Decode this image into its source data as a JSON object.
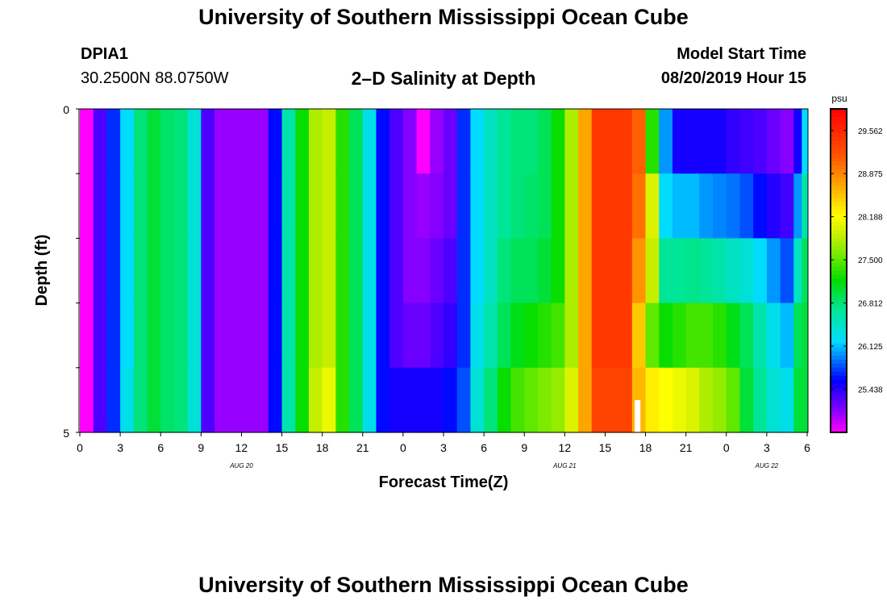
{
  "page": {
    "title": "University of Southern Mississippi Ocean Cube",
    "footer_title": "University of Southern Mississippi Ocean Cube",
    "station_id": "DPIA1",
    "station_coords": "30.2500N 88.0750W",
    "plot_title": "2–D Salinity at Depth",
    "model_start_label": "Model Start Time",
    "model_start_value": "08/20/2019 Hour 15"
  },
  "chart_data": {
    "type": "heatmap",
    "title": "2–D Salinity at Depth",
    "xlabel": "Forecast Time(Z)",
    "ylabel": "Depth (ft)",
    "x_tick_labels": [
      "0",
      "3",
      "6",
      "9",
      "12",
      "15",
      "18",
      "21",
      "0",
      "3",
      "6",
      "9",
      "12",
      "15",
      "18",
      "21",
      "0",
      "3",
      "6"
    ],
    "date_labels": [
      {
        "text": "AUG 20",
        "hour": 12
      },
      {
        "text": "AUG 21",
        "hour": 36
      },
      {
        "text": "AUG 22",
        "hour": 51
      }
    ],
    "y_tick_labels": [
      "0",
      "5"
    ],
    "x_hours": [
      0,
      54
    ],
    "depth_ft": [
      0,
      5
    ],
    "colorbar": {
      "unit": "psu",
      "min": 24.75,
      "max": 29.906,
      "tick_values": [
        "29.562",
        "28.875",
        "28.188",
        "27.500",
        "26.812",
        "26.125",
        "25.438"
      ]
    },
    "columns": [
      {
        "start": 0,
        "end": 1,
        "v": [
          24.75,
          24.75,
          24.75,
          24.75,
          24.75
        ]
      },
      {
        "start": 1,
        "end": 2,
        "v": [
          25.3,
          25.3,
          25.3,
          25.3,
          25.3
        ]
      },
      {
        "start": 2,
        "end": 3,
        "v": [
          25.7,
          25.7,
          25.7,
          25.7,
          25.7
        ]
      },
      {
        "start": 3,
        "end": 4,
        "v": [
          26.2,
          26.2,
          26.2,
          26.2,
          26.3
        ]
      },
      {
        "start": 4,
        "end": 5,
        "v": [
          26.8,
          26.8,
          26.8,
          26.8,
          26.8
        ]
      },
      {
        "start": 5,
        "end": 6,
        "v": [
          27.0,
          27.0,
          27.0,
          27.0,
          27.0
        ]
      },
      {
        "start": 6,
        "end": 7,
        "v": [
          26.85,
          26.85,
          26.85,
          26.85,
          26.85
        ]
      },
      {
        "start": 7,
        "end": 8,
        "v": [
          26.8,
          26.8,
          26.8,
          26.8,
          26.8
        ]
      },
      {
        "start": 8,
        "end": 9,
        "v": [
          26.4,
          26.4,
          26.4,
          26.4,
          26.4
        ]
      },
      {
        "start": 9,
        "end": 10,
        "v": [
          25.3,
          25.3,
          25.3,
          25.3,
          25.3
        ]
      },
      {
        "start": 10,
        "end": 14,
        "v": [
          25.05,
          25.05,
          25.05,
          25.05,
          25.05
        ]
      },
      {
        "start": 14,
        "end": 15,
        "v": [
          25.6,
          25.6,
          25.6,
          25.6,
          25.6
        ]
      },
      {
        "start": 15,
        "end": 16,
        "v": [
          26.6,
          26.6,
          26.6,
          26.6,
          26.6
        ]
      },
      {
        "start": 16,
        "end": 17,
        "v": [
          27.2,
          27.2,
          27.2,
          27.2,
          27.2
        ]
      },
      {
        "start": 17,
        "end": 18,
        "v": [
          27.8,
          27.8,
          27.8,
          27.8,
          27.9
        ]
      },
      {
        "start": 18,
        "end": 19,
        "v": [
          27.9,
          27.9,
          27.9,
          27.9,
          28.1
        ]
      },
      {
        "start": 19,
        "end": 20,
        "v": [
          27.3,
          27.3,
          27.3,
          27.3,
          27.3
        ]
      },
      {
        "start": 20,
        "end": 21,
        "v": [
          26.9,
          26.9,
          26.9,
          26.9,
          26.9
        ]
      },
      {
        "start": 21,
        "end": 22,
        "v": [
          26.3,
          26.3,
          26.3,
          26.3,
          26.3
        ]
      },
      {
        "start": 22,
        "end": 23,
        "v": [
          25.6,
          25.6,
          25.6,
          25.6,
          25.6
        ]
      },
      {
        "start": 23,
        "end": 24,
        "v": [
          25.3,
          25.3,
          25.3,
          25.3,
          25.5
        ]
      },
      {
        "start": 24,
        "end": 25,
        "v": [
          25.1,
          25.1,
          25.1,
          25.2,
          25.5
        ]
      },
      {
        "start": 25,
        "end": 26,
        "v": [
          24.75,
          25.05,
          25.1,
          25.2,
          25.5
        ]
      },
      {
        "start": 26,
        "end": 27,
        "v": [
          25.05,
          25.1,
          25.2,
          25.3,
          25.5
        ]
      },
      {
        "start": 27,
        "end": 28,
        "v": [
          25.2,
          25.2,
          25.3,
          25.4,
          25.6
        ]
      },
      {
        "start": 28,
        "end": 29,
        "v": [
          25.7,
          25.7,
          25.7,
          25.7,
          25.8
        ]
      },
      {
        "start": 29,
        "end": 30,
        "v": [
          26.2,
          26.2,
          26.2,
          26.3,
          26.4
        ]
      },
      {
        "start": 30,
        "end": 31,
        "v": [
          26.5,
          26.5,
          26.5,
          26.6,
          26.8
        ]
      },
      {
        "start": 31,
        "end": 32,
        "v": [
          26.7,
          26.7,
          26.8,
          26.9,
          27.2
        ]
      },
      {
        "start": 32,
        "end": 33,
        "v": [
          26.8,
          26.8,
          26.9,
          27.1,
          27.4
        ]
      },
      {
        "start": 33,
        "end": 34,
        "v": [
          26.8,
          26.85,
          26.9,
          27.2,
          27.5
        ]
      },
      {
        "start": 34,
        "end": 35,
        "v": [
          26.9,
          26.9,
          27.0,
          27.3,
          27.6
        ]
      },
      {
        "start": 35,
        "end": 36,
        "v": [
          27.2,
          27.2,
          27.2,
          27.4,
          27.7
        ]
      },
      {
        "start": 36,
        "end": 37,
        "v": [
          27.8,
          27.8,
          27.8,
          27.8,
          28.0
        ]
      },
      {
        "start": 37,
        "end": 38,
        "v": [
          28.7,
          28.7,
          28.7,
          28.7,
          28.7
        ]
      },
      {
        "start": 38,
        "end": 41,
        "v": [
          29.4,
          29.4,
          29.4,
          29.4,
          29.3
        ]
      },
      {
        "start": 41,
        "end": 42,
        "v": [
          29.1,
          29.0,
          28.8,
          28.5,
          28.6
        ]
      },
      {
        "start": 42,
        "end": 43,
        "v": [
          27.3,
          28.0,
          27.9,
          27.5,
          28.3
        ]
      },
      {
        "start": 43,
        "end": 44,
        "v": [
          26.0,
          26.2,
          26.7,
          27.2,
          28.2
        ]
      },
      {
        "start": 44,
        "end": 45,
        "v": [
          25.5,
          26.1,
          26.7,
          27.3,
          28.1
        ]
      },
      {
        "start": 45,
        "end": 46,
        "v": [
          25.5,
          26.1,
          26.75,
          27.4,
          28.0
        ]
      },
      {
        "start": 46,
        "end": 47,
        "v": [
          25.5,
          26.0,
          26.7,
          27.4,
          27.8
        ]
      },
      {
        "start": 47,
        "end": 48,
        "v": [
          25.5,
          25.95,
          26.6,
          27.3,
          27.7
        ]
      },
      {
        "start": 48,
        "end": 49,
        "v": [
          25.4,
          25.9,
          26.5,
          27.1,
          27.5
        ]
      },
      {
        "start": 49,
        "end": 50,
        "v": [
          25.35,
          25.8,
          26.4,
          26.9,
          27.0
        ]
      },
      {
        "start": 50,
        "end": 51,
        "v": [
          25.3,
          25.6,
          26.2,
          26.6,
          26.7
        ]
      },
      {
        "start": 51,
        "end": 52,
        "v": [
          25.2,
          25.45,
          26.0,
          26.3,
          26.4
        ]
      },
      {
        "start": 52,
        "end": 53,
        "v": [
          25.1,
          25.35,
          25.8,
          26.1,
          26.3
        ]
      },
      {
        "start": 53,
        "end": 53.6,
        "v": [
          25.5,
          26.0,
          26.5,
          26.9,
          27.0
        ]
      },
      {
        "start": 53.6,
        "end": 54,
        "v": [
          26.2,
          26.6,
          26.9,
          27.0,
          27.0
        ]
      }
    ]
  }
}
